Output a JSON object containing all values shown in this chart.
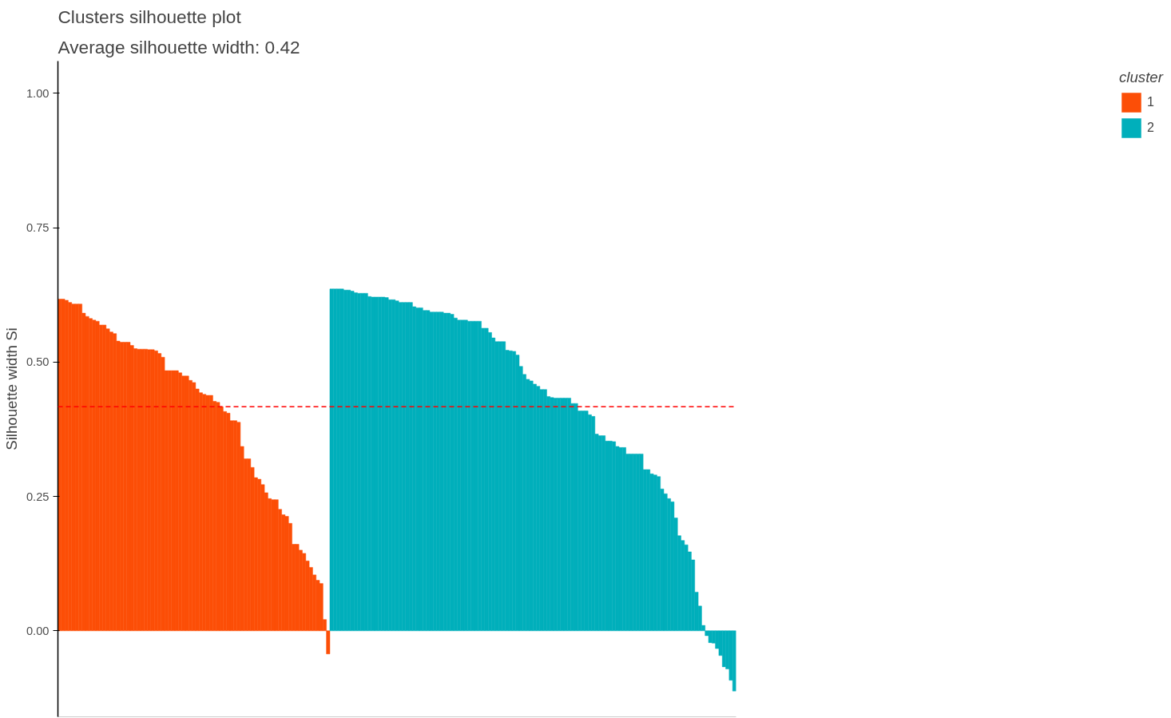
{
  "chart_data": {
    "type": "bar",
    "title": "Clusters silhouette plot",
    "subtitle": " Average silhouette width: 0.42",
    "ylabel": "Silhouette width Si",
    "legend_title": "cluster",
    "categories": [
      null,
      null,
      null,
      null,
      null,
      null,
      null,
      null,
      null,
      null,
      null,
      null,
      null,
      null,
      null,
      null,
      null,
      null,
      null,
      null,
      null,
      null,
      null,
      null,
      null,
      null,
      null,
      null,
      null,
      null,
      null,
      null,
      null,
      null,
      null,
      null,
      null,
      null,
      null,
      null,
      null,
      null,
      null,
      null,
      null,
      null,
      null,
      null,
      null,
      null,
      null,
      null,
      null,
      null,
      null,
      null,
      null,
      null,
      null,
      null,
      null,
      null,
      null,
      null,
      null,
      null,
      null,
      null,
      null,
      null,
      null,
      null,
      null,
      null,
      null,
      null,
      null,
      null,
      null,
      null,
      null,
      null,
      null,
      null,
      null,
      null,
      null,
      null,
      null,
      null,
      null,
      null,
      null,
      null,
      null,
      null,
      null,
      null,
      null,
      null,
      null,
      null,
      null,
      null,
      null,
      null,
      null,
      null,
      null,
      null,
      null,
      null,
      null,
      null,
      null,
      null,
      null,
      null,
      null,
      null,
      null,
      null,
      null,
      null,
      null,
      null,
      null,
      null,
      null,
      null,
      null,
      null,
      null,
      null,
      null,
      null,
      null,
      null,
      null,
      null,
      null,
      null,
      null,
      null,
      null,
      null,
      null,
      null,
      null,
      null,
      null,
      null,
      null,
      null,
      null,
      null,
      null,
      null,
      null,
      null,
      null,
      null,
      null,
      null,
      null,
      null,
      null,
      null,
      null,
      null,
      null,
      null,
      null,
      null,
      null,
      null,
      null,
      null,
      null,
      null,
      null,
      null,
      null,
      null,
      null,
      null,
      null,
      null,
      null,
      null,
      null,
      null,
      null,
      null,
      null,
      null,
      null
    ],
    "series": [
      {
        "name": "1",
        "color": "#fc4e07",
        "values": [
          0.617,
          0.617,
          0.615,
          0.611,
          0.608,
          0.608,
          0.608,
          0.591,
          0.585,
          0.581,
          0.578,
          0.576,
          0.569,
          0.569,
          0.562,
          0.556,
          0.553,
          0.539,
          0.537,
          0.537,
          0.537,
          0.531,
          0.525,
          0.524,
          0.524,
          0.524,
          0.523,
          0.523,
          0.521,
          0.516,
          0.509,
          0.484,
          0.484,
          0.484,
          0.484,
          0.48,
          0.474,
          0.474,
          0.466,
          0.462,
          0.45,
          0.443,
          0.44,
          0.438,
          0.438,
          0.427,
          0.425,
          0.417,
          0.408,
          0.405,
          0.391,
          0.391,
          0.388,
          0.343,
          0.32,
          0.32,
          0.304,
          0.285,
          0.282,
          0.272,
          0.257,
          0.246,
          0.244,
          0.244,
          0.226,
          0.216,
          0.213,
          0.2,
          0.161,
          0.161,
          0.15,
          0.144,
          0.13,
          0.118,
          0.104,
          0.094,
          0.088,
          0.021,
          -0.043,
          null,
          null,
          null,
          null,
          null,
          null,
          null,
          null,
          null,
          null,
          null,
          null,
          null,
          null,
          null,
          null,
          null,
          null,
          null,
          null,
          null,
          null,
          null,
          null,
          null,
          null,
          null,
          null,
          null,
          null,
          null,
          null,
          null,
          null,
          null,
          null,
          null,
          null,
          null,
          null,
          null,
          null,
          null,
          null,
          null,
          null,
          null,
          null,
          null,
          null,
          null,
          null,
          null,
          null,
          null,
          null,
          null,
          null,
          null,
          null,
          null,
          null,
          null,
          null,
          null,
          null,
          null,
          null,
          null,
          null,
          null,
          null,
          null,
          null,
          null,
          null,
          null,
          null,
          null,
          null,
          null,
          null,
          null,
          null,
          null,
          null,
          null,
          null,
          null,
          null,
          null,
          null,
          null,
          null,
          null,
          null,
          null,
          null,
          null,
          null,
          null,
          null,
          null,
          null,
          null,
          null,
          null,
          null,
          null,
          null,
          null,
          null,
          null,
          null,
          null,
          null,
          null,
          null
        ]
      },
      {
        "name": "2",
        "color": "#00afbb",
        "values": [
          null,
          null,
          null,
          null,
          null,
          null,
          null,
          null,
          null,
          null,
          null,
          null,
          null,
          null,
          null,
          null,
          null,
          null,
          null,
          null,
          null,
          null,
          null,
          null,
          null,
          null,
          null,
          null,
          null,
          null,
          null,
          null,
          null,
          null,
          null,
          null,
          null,
          null,
          null,
          null,
          null,
          null,
          null,
          null,
          null,
          null,
          null,
          null,
          null,
          null,
          null,
          null,
          null,
          null,
          null,
          null,
          null,
          null,
          null,
          null,
          null,
          null,
          null,
          null,
          null,
          null,
          null,
          null,
          null,
          null,
          null,
          null,
          null,
          null,
          null,
          null,
          null,
          null,
          null,
          0.636,
          0.636,
          0.636,
          0.636,
          0.634,
          0.634,
          0.632,
          0.629,
          0.628,
          0.628,
          0.628,
          0.622,
          0.621,
          0.621,
          0.621,
          0.621,
          0.62,
          0.616,
          0.616,
          0.614,
          0.611,
          0.611,
          0.611,
          0.611,
          0.603,
          0.601,
          0.601,
          0.596,
          0.596,
          0.593,
          0.593,
          0.593,
          0.593,
          0.591,
          0.591,
          0.589,
          0.582,
          0.578,
          0.578,
          0.578,
          0.576,
          0.576,
          0.576,
          0.576,
          0.563,
          0.563,
          0.555,
          0.545,
          0.538,
          0.538,
          0.538,
          0.522,
          0.521,
          0.52,
          0.513,
          0.492,
          0.477,
          0.468,
          0.465,
          0.459,
          0.455,
          0.449,
          0.449,
          0.436,
          0.434,
          0.433,
          0.433,
          0.433,
          0.433,
          0.433,
          0.423,
          0.423,
          0.409,
          0.409,
          0.409,
          0.402,
          0.399,
          0.366,
          0.363,
          0.363,
          0.353,
          0.353,
          0.352,
          0.343,
          0.341,
          0.341,
          0.329,
          0.329,
          0.329,
          0.329,
          0.329,
          0.3,
          0.3,
          0.292,
          0.29,
          0.287,
          0.264,
          0.255,
          0.246,
          0.24,
          0.21,
          0.177,
          0.168,
          0.16,
          0.147,
          0.132,
          0.072,
          0.046,
          0.01,
          -0.009,
          -0.022,
          -0.023,
          -0.033,
          -0.046,
          -0.067,
          -0.071,
          -0.092,
          -0.112
        ]
      }
    ],
    "ylim": [
      -0.16,
      1.06
    ],
    "yticks": [
      {
        "value": 0,
        "label": "0.00"
      },
      {
        "value": 0.25,
        "label": "0.25"
      },
      {
        "value": 0.5,
        "label": "0.50"
      },
      {
        "value": 0.75,
        "label": "0.75"
      },
      {
        "value": 1,
        "label": "1.00"
      }
    ],
    "ref_lines": [
      {
        "axis": "y",
        "value": 0.417,
        "color": "#ff0000",
        "line_style": "dashed"
      }
    ],
    "grid": false,
    "legend": "right",
    "tick_labels": "y"
  }
}
